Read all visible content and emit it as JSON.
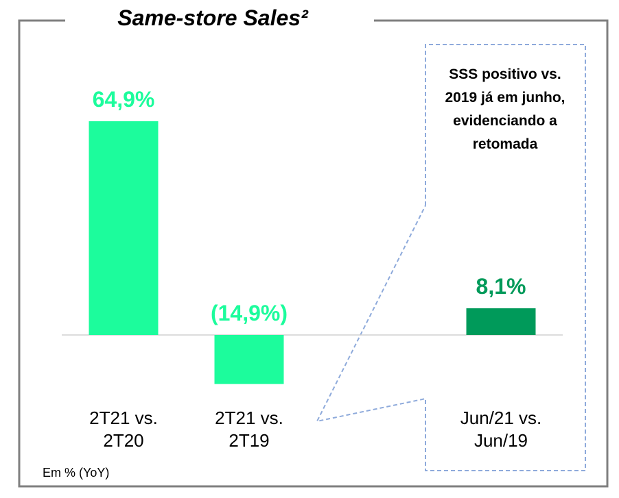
{
  "chart_data": {
    "type": "bar",
    "title": "Same-store Sales²",
    "categories": [
      "2T21 vs. 2T20",
      "2T21 vs. 2T19",
      "Jun/21 vs. Jun/19"
    ],
    "values": [
      64.9,
      -14.9,
      8.1
    ],
    "value_labels": [
      "64,9%",
      "(14,9%)",
      "8,1%"
    ],
    "colors": [
      "#1cfc9c",
      "#1cfc9c",
      "#009a5a"
    ],
    "annotation": "SSS positivo vs. 2019 já em junho, evidenciando a retomada",
    "note": "Em % (YoY)"
  }
}
